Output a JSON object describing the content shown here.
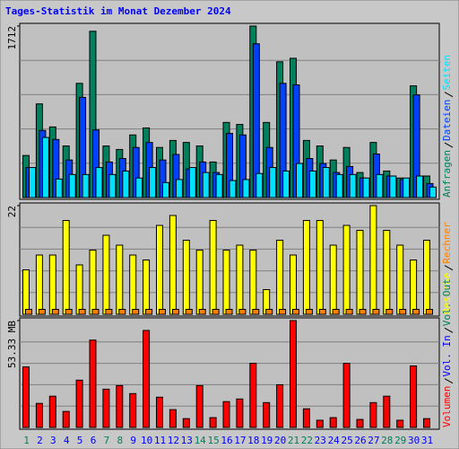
{
  "chart_data": [
    {
      "type": "bar",
      "title": "Tages-Statistik im Monat Dezember 2024",
      "categories": [
        "1",
        "2",
        "3",
        "4",
        "5",
        "6",
        "7",
        "8",
        "9",
        "10",
        "11",
        "12",
        "13",
        "14",
        "15",
        "16",
        "17",
        "18",
        "19",
        "20",
        "21",
        "22",
        "23",
        "24",
        "25",
        "26",
        "27",
        "28",
        "29",
        "30",
        "31"
      ],
      "ylim": [
        0,
        1712
      ],
      "yticks": [
        1712
      ],
      "series": [
        {
          "name": "Anfragen",
          "color": "#00805c",
          "values": [
            420,
            935,
            705,
            515,
            1140,
            1660,
            515,
            480,
            625,
            695,
            500,
            570,
            550,
            515,
            355,
            750,
            730,
            1712,
            750,
            1355,
            1390,
            570,
            515,
            375,
            500,
            250,
            550,
            265,
            195,
            1115,
            215
          ]
        },
        {
          "name": "Dateien",
          "color": "#0040ff",
          "values": [
            300,
            670,
            580,
            375,
            1000,
            675,
            355,
            390,
            500,
            550,
            375,
            430,
            285,
            355,
            250,
            640,
            625,
            1535,
            500,
            1140,
            1125,
            390,
            340,
            250,
            310,
            195,
            435,
            215,
            180,
            1025,
            140
          ]
        },
        {
          "name": "Seiten",
          "color": "#00e0ff",
          "values": [
            300,
            600,
            185,
            230,
            230,
            300,
            230,
            265,
            195,
            300,
            150,
            180,
            300,
            250,
            230,
            170,
            180,
            240,
            300,
            265,
            340,
            265,
            300,
            230,
            230,
            195,
            230,
            215,
            195,
            215,
            105
          ]
        }
      ]
    },
    {
      "type": "bar",
      "ylim": [
        0,
        22
      ],
      "yticks": [
        22
      ],
      "series": [
        {
          "name": "Besuche",
          "color": "#ffff00",
          "values": [
            9,
            12,
            12,
            19,
            10,
            13,
            16,
            14,
            12,
            11,
            18,
            20,
            15,
            13,
            19,
            13,
            14,
            13,
            5,
            15,
            12,
            19,
            19,
            14,
            18,
            17,
            22,
            17,
            14,
            11,
            15
          ]
        },
        {
          "name": "Rechner",
          "color": "#ff8000",
          "values": [
            1,
            1,
            1,
            1,
            1,
            1,
            1,
            1,
            1,
            1,
            1,
            1,
            1,
            1,
            1,
            1,
            1,
            1,
            1,
            1,
            1,
            1,
            1,
            1,
            1,
            1,
            1,
            1,
            1,
            1,
            1
          ]
        }
      ]
    },
    {
      "type": "bar",
      "ylim": [
        0,
        53.33
      ],
      "yticks": [
        {
          "value": 53.33,
          "label": "53.33 MB"
        }
      ],
      "category_colors": [
        "#00805c",
        "#0000ff",
        "#0000ff",
        "#0000ff",
        "#0000ff",
        "#0000ff",
        "#00805c",
        "#00805c",
        "#0000ff",
        "#0000ff",
        "#0000ff",
        "#0000ff",
        "#0000ff",
        "#00805c",
        "#00805c",
        "#0000ff",
        "#0000ff",
        "#0000ff",
        "#0000ff",
        "#0000ff",
        "#00805c",
        "#00805c",
        "#0000ff",
        "#0000ff",
        "#0000ff",
        "#0000ff",
        "#0000ff",
        "#00805c",
        "#00805c",
        "#0000ff",
        "#0000ff"
      ],
      "series": [
        {
          "name": "Volumen",
          "color": "#ff0000",
          "values": [
            30.2,
            12,
            15.6,
            8,
            23.6,
            43.6,
            19.1,
            20.9,
            16.9,
            48.4,
            15.1,
            8.9,
            4.4,
            20.9,
            4.9,
            12.9,
            14.2,
            32,
            12.4,
            21.3,
            53.33,
            9.3,
            3.6,
            4.9,
            32,
            4,
            12.4,
            15.6,
            3.6,
            30.7,
            4.4
          ]
        },
        {
          "name": "Vol. In",
          "color": "#0000ff"
        },
        {
          "name": "Vol. Out",
          "color": "#00805c"
        }
      ]
    }
  ]
}
